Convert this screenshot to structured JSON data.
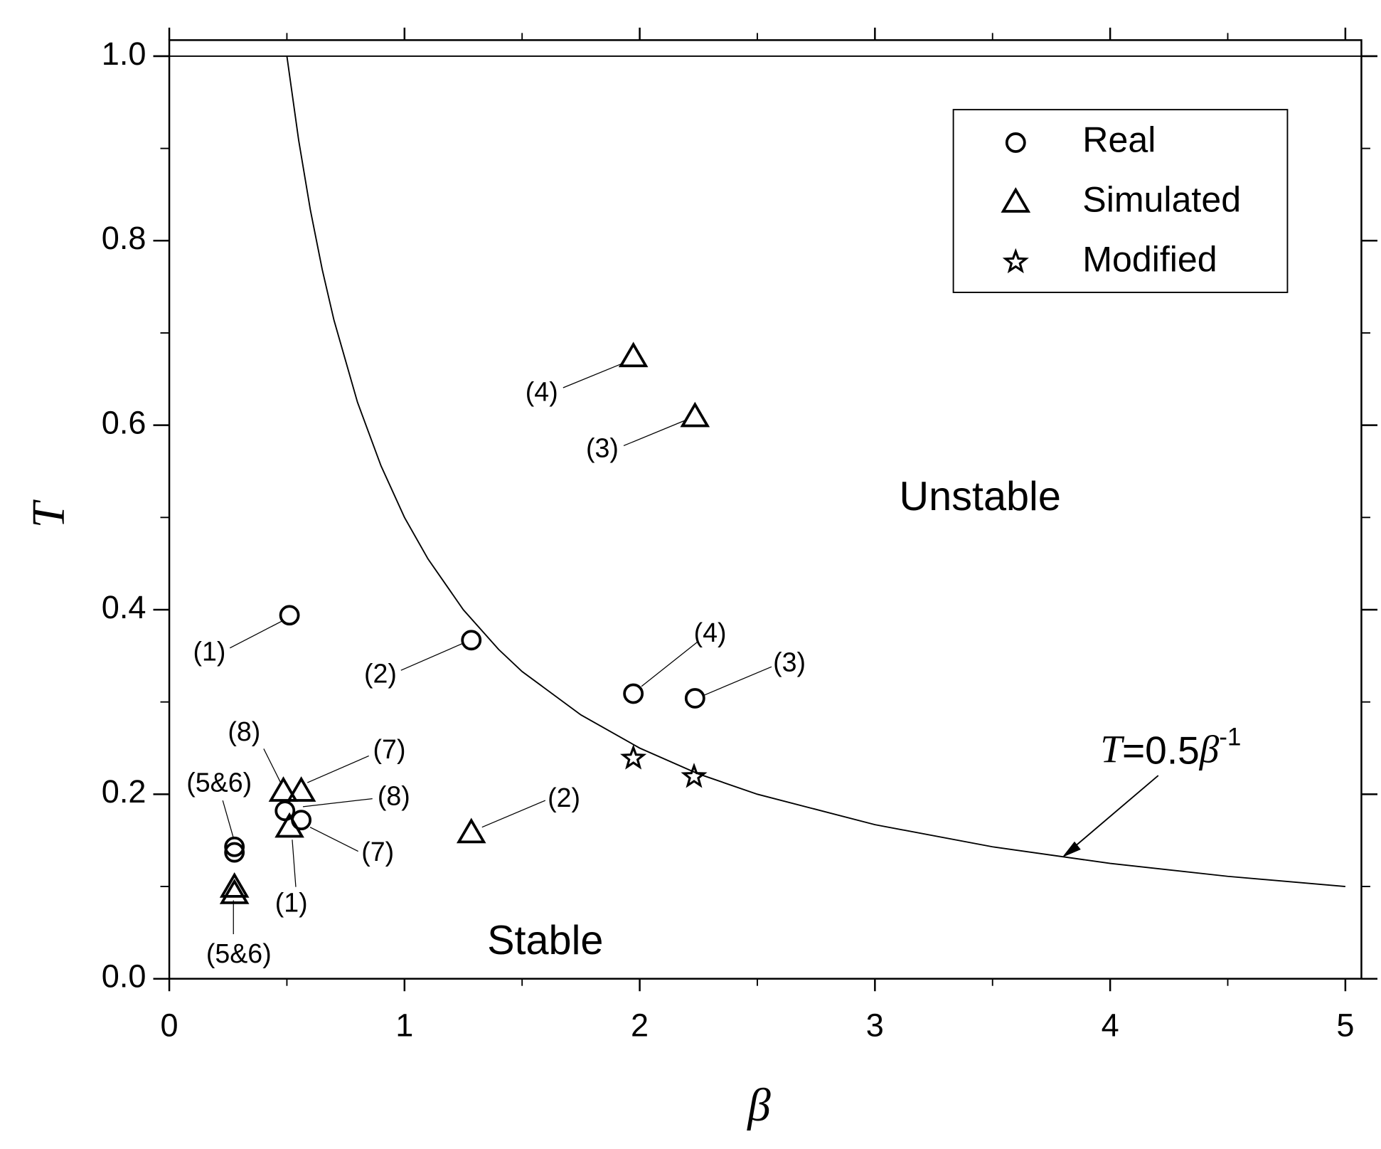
{
  "chart_data": {
    "type": "scatter",
    "xlabel": "β",
    "ylabel": "T",
    "xlim": [
      0,
      5
    ],
    "ylim": [
      0,
      1
    ],
    "xticks": [
      0,
      1,
      2,
      3,
      4,
      5
    ],
    "xminorticks": [
      0.5,
      1.5,
      2.5,
      3.5,
      4.5
    ],
    "yticks": [
      {
        "value": 0,
        "label": "0.0"
      },
      0.2,
      0.4,
      0.6,
      0.8,
      {
        "value": 1,
        "label": "1.0"
      }
    ],
    "yminorticks": [
      0.1,
      0.3,
      0.5,
      0.7,
      0.9
    ],
    "legend": "upper right",
    "series": [
      {
        "name": "Real",
        "marker": "circle",
        "color": "#000000",
        "x": [
          0.511,
          1.284,
          1.973,
          2.235,
          0.277,
          0.277,
          0.492,
          0.561
        ],
        "values": [
          0.394,
          0.367,
          0.309,
          0.304,
          0.143,
          0.137,
          0.182,
          0.172
        ],
        "labels": [
          "(1)",
          "(2)",
          "(4)",
          "(3)",
          "(5&6)",
          null,
          "(8)",
          "(7)"
        ]
      },
      {
        "name": "Simulated",
        "marker": "triangle",
        "color": "#000000",
        "x": [
          1.973,
          2.235,
          1.284,
          0.485,
          0.561,
          0.511,
          0.277,
          0.277
        ],
        "values": [
          0.674,
          0.609,
          0.158,
          0.203,
          0.203,
          0.164,
          0.099,
          0.092
        ],
        "labels": [
          "(4)",
          "(3)",
          "(2)",
          "(8)",
          "(7)",
          "(1)",
          "(5&6)",
          null
        ]
      },
      {
        "name": "Modified",
        "marker": "star",
        "color": "#000000",
        "x": [
          1.973,
          2.231
        ],
        "values": [
          0.239,
          0.219
        ]
      }
    ],
    "curve": {
      "label_parts": [
        "T",
        "=0.5",
        "β",
        "-1"
      ],
      "color": "#000000",
      "x": [
        0.5,
        0.55,
        0.6,
        0.65,
        0.7,
        0.8,
        0.9,
        1,
        1.1,
        1.25,
        1.4,
        1.5,
        1.75,
        2,
        2.25,
        2.5,
        3,
        3.5,
        4,
        4.5,
        5
      ],
      "values": [
        1,
        0.909,
        0.833,
        0.769,
        0.714,
        0.625,
        0.556,
        0.5,
        0.455,
        0.4,
        0.357,
        0.333,
        0.286,
        0.25,
        0.222,
        0.2,
        0.167,
        0.143,
        0.125,
        0.111,
        0.1
      ]
    },
    "annotations": [
      "Unstable",
      "Stable"
    ]
  }
}
